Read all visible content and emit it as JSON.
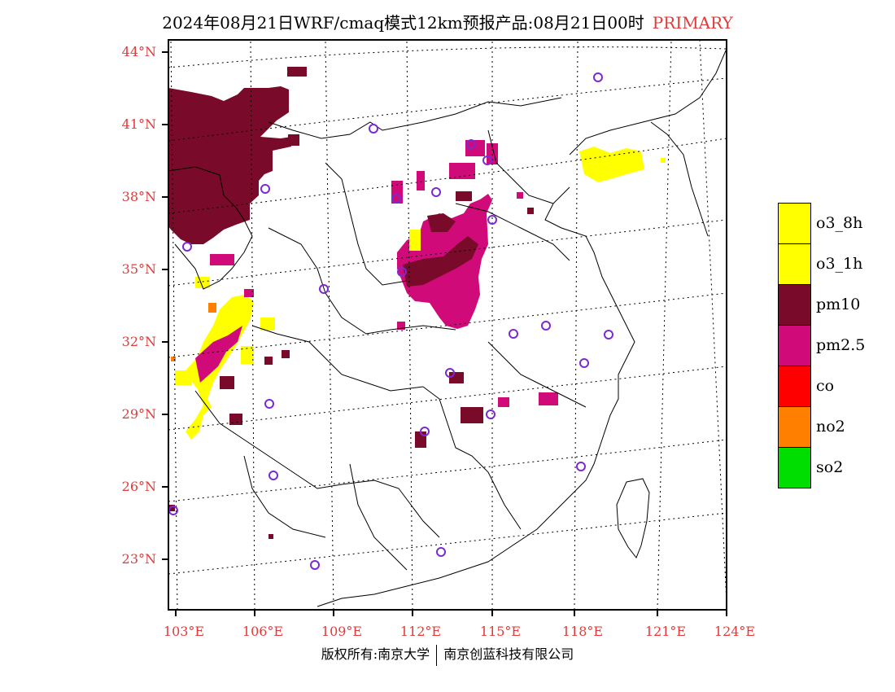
{
  "title": "2024年08月21日WRF/cmaq模式12km预报产品:08月21日00时",
  "title_tag": "PRIMARY",
  "y_ticks": [
    "44°N",
    "41°N",
    "38°N",
    "35°N",
    "32°N",
    "29°N",
    "26°N",
    "23°N"
  ],
  "x_ticks": [
    "103°E",
    "106°E",
    "109°E",
    "112°E",
    "115°E",
    "118°E",
    "121°E",
    "124°E"
  ],
  "legend": [
    {
      "label": "o3_8h",
      "color": "#ffff00"
    },
    {
      "label": "o3_1h",
      "color": "#ffff00"
    },
    {
      "label": "pm10",
      "color": "#7a0a2a"
    },
    {
      "label": "pm2.5",
      "color": "#d10a7a"
    },
    {
      "label": "co",
      "color": "#ff0000"
    },
    {
      "label": "no2",
      "color": "#ff7f00"
    },
    {
      "label": "so2",
      "color": "#00dd00"
    }
  ],
  "footer": {
    "left": "版权所有:南京大学",
    "right": "南京创蓝科技有限公司"
  }
}
